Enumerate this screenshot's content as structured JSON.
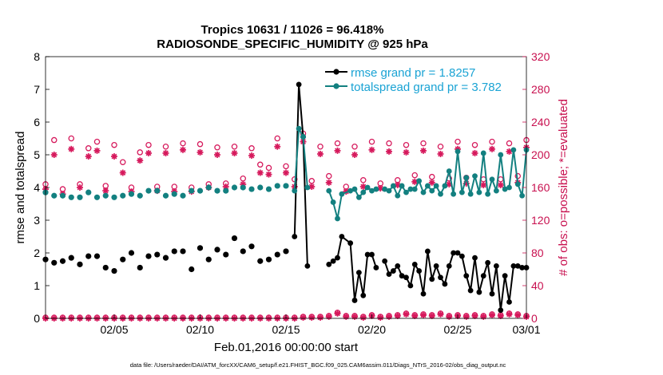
{
  "chart_data": {
    "type": "line",
    "title": "Tropics 10631 / 11026 = 96.418%",
    "subtitle": "RADIOSONDE_SPECIFIC_HUMIDITY @ 925 hPa",
    "xlabel": "Feb.01,2016 00:00:00 start",
    "ylabel": "rmse and totalspread",
    "ylabel_right": "# of obs: o=possible; *=evaluated",
    "footer": "data file: /Users/raeder/DAI/ATM_forcXX/CAM6_setup/f.e21.FHIST_BGC.f09_025.CAM6assim.011/Diags_NTrS_2016-02/obs_diag_output.nc",
    "xlim": [
      1,
      29
    ],
    "ylim": [
      0,
      8
    ],
    "ylim_right": [
      0,
      320
    ],
    "x_ticks": [
      {
        "value": 5,
        "label": "02/05"
      },
      {
        "value": 10,
        "label": "02/10"
      },
      {
        "value": 15,
        "label": "02/15"
      },
      {
        "value": 20,
        "label": "02/20"
      },
      {
        "value": 25,
        "label": "02/25"
      },
      {
        "value": 29,
        "label": "03/01"
      }
    ],
    "y_ticks": [
      0,
      1,
      2,
      3,
      4,
      5,
      6,
      7,
      8
    ],
    "y_ticks_right": [
      0,
      40,
      80,
      120,
      160,
      200,
      240,
      280,
      320
    ],
    "legend": {
      "location": "top-right",
      "entries": [
        "rmse grand pr = 1.8257",
        "totalspread grand pr = 3.782"
      ]
    },
    "colors": {
      "rmse": "#000000",
      "spread": "#138080",
      "obs": "#d6195c"
    },
    "series": [
      {
        "name": "rmse grand pr = 1.8257",
        "axis": "left",
        "segments": [
          {
            "x": [
              15.5,
              15.75,
              16.0,
              16.25
            ],
            "y": [
              2.5,
              7.15,
              5.55,
              1.6
            ]
          },
          {
            "x": [
              17.5,
              17.75,
              18.0,
              18.25,
              18.75,
              19.0,
              19.25,
              19.5,
              19.75,
              20.0,
              20.25
            ],
            "y": [
              1.65,
              1.75,
              1.85,
              2.5,
              2.3,
              0.55,
              1.4,
              0.7,
              1.95,
              1.95,
              1.55
            ]
          },
          {
            "x": [
              20.75,
              21.0,
              21.25,
              21.5,
              21.75,
              22.0,
              22.25,
              22.5,
              22.75,
              23.0,
              23.25,
              23.5,
              23.75,
              24.0,
              24.25,
              24.5,
              24.75,
              25.0,
              25.25,
              25.5,
              25.75,
              26.0,
              26.25,
              26.5,
              26.75,
              27.0,
              27.25,
              27.5,
              27.75,
              28.0,
              28.25,
              28.5,
              28.75,
              29.0
            ],
            "y": [
              1.75,
              1.35,
              1.45,
              1.6,
              1.3,
              1.25,
              1.0,
              1.65,
              1.45,
              0.75,
              2.05,
              1.2,
              1.6,
              1.25,
              1.05,
              1.6,
              2.0,
              2.0,
              1.9,
              1.3,
              0.85,
              1.85,
              0.8,
              1.3,
              1.7,
              0.75,
              1.6,
              0.25,
              1.3,
              0.5,
              1.6,
              1.6,
              1.55,
              1.55
            ]
          }
        ],
        "points": {
          "x": [
            1.0,
            1.5,
            2.0,
            2.5,
            3.0,
            3.5,
            4.0,
            4.5,
            5.0,
            5.5,
            6.0,
            6.5,
            7.0,
            7.5,
            8.0,
            8.5,
            9.0,
            9.5,
            10.0,
            10.5,
            11.0,
            11.5,
            12.0,
            12.5,
            13.0,
            13.5,
            14.0,
            14.5,
            15.0
          ],
          "y": [
            1.8,
            1.7,
            1.75,
            1.85,
            1.65,
            1.9,
            1.9,
            1.55,
            1.45,
            1.8,
            2.0,
            1.55,
            1.9,
            1.95,
            1.85,
            2.05,
            2.05,
            1.5,
            2.15,
            1.8,
            2.1,
            1.95,
            2.45,
            2.05,
            2.2,
            1.75,
            1.8,
            1.95,
            2.05
          ]
        }
      },
      {
        "name": "totalspread grand pr = 3.782",
        "axis": "left",
        "segments": [
          {
            "x": [
              15.5,
              15.75,
              16.0,
              16.25
            ],
            "y": [
              3.9,
              5.8,
              5.55,
              4.0
            ]
          },
          {
            "x": [
              17.5,
              17.75,
              18.0,
              18.25,
              18.75,
              19.0,
              19.25,
              19.5,
              19.75,
              20.0,
              20.25
            ],
            "y": [
              3.9,
              3.55,
              3.05,
              3.8,
              3.9,
              3.95,
              3.7,
              3.85,
              4.0,
              3.9,
              3.95
            ]
          },
          {
            "x": [
              20.75,
              21.0,
              21.25,
              21.5,
              21.75,
              22.0,
              22.25,
              22.5,
              22.75,
              23.0,
              23.25,
              23.5,
              23.75,
              24.0,
              24.25,
              24.5,
              24.75,
              25.0,
              25.25,
              25.5,
              25.75,
              26.0,
              26.25,
              26.5,
              26.75,
              27.0,
              27.25,
              27.5,
              27.75,
              28.0,
              28.25,
              28.5,
              28.75,
              29.0
            ],
            "y": [
              3.95,
              3.9,
              4.05,
              3.75,
              4.05,
              3.85,
              3.95,
              3.95,
              4.2,
              3.85,
              4.05,
              3.9,
              4.05,
              3.8,
              4.05,
              4.5,
              3.8,
              5.1,
              3.85,
              4.3,
              3.8,
              4.35,
              3.85,
              5.05,
              3.8,
              4.25,
              3.9,
              5.0,
              3.95,
              4.0,
              5.15,
              4.1,
              3.75,
              5.15
            ]
          }
        ],
        "points": {
          "x": [
            1.0,
            1.5,
            2.0,
            2.5,
            3.0,
            3.5,
            4.0,
            4.5,
            5.0,
            5.5,
            6.0,
            6.5,
            7.0,
            7.5,
            8.0,
            8.5,
            9.0,
            9.5,
            10.0,
            10.5,
            11.0,
            11.5,
            12.0,
            12.5,
            13.0,
            13.5,
            14.0,
            14.5,
            15.0
          ],
          "y": [
            3.85,
            3.75,
            3.75,
            3.7,
            3.7,
            3.85,
            3.7,
            3.75,
            3.7,
            3.75,
            3.8,
            3.75,
            3.9,
            3.9,
            3.75,
            3.8,
            3.75,
            3.9,
            3.9,
            4.0,
            3.9,
            3.9,
            4.0,
            4.0,
            3.95,
            4.0,
            3.95,
            4.05,
            4.05
          ]
        }
      },
      {
        "name": "possible",
        "axis": "right",
        "x": [
          1.0,
          1.5,
          2.0,
          2.5,
          3.0,
          3.5,
          4.0,
          4.5,
          5.0,
          5.5,
          6.0,
          6.5,
          7.0,
          7.5,
          8.0,
          8.5,
          9.0,
          9.5,
          10.0,
          10.5,
          11.0,
          11.5,
          12.0,
          12.5,
          13.0,
          13.5,
          14.0,
          14.5,
          15.0,
          15.5,
          16.0,
          16.5,
          17.0,
          17.5,
          18.0,
          18.5,
          19.0,
          19.5,
          20.0,
          20.5,
          21.0,
          21.5,
          22.0,
          22.5,
          23.0,
          23.5,
          24.0,
          24.5,
          25.0,
          25.5,
          26.0,
          26.5,
          27.0,
          27.5,
          28.0,
          28.5,
          29.0
        ],
        "y": [
          164,
          218,
          158,
          220,
          164,
          208,
          216,
          162,
          212,
          191,
          160,
          203,
          212,
          161,
          210,
          161,
          214,
          160,
          213,
          164,
          209,
          165,
          210,
          171,
          208,
          188,
          184,
          220,
          186,
          170,
          226,
          168,
          210,
          174,
          214,
          161,
          210,
          169,
          216,
          165,
          214,
          169,
          212,
          175,
          214,
          173,
          210,
          171,
          216,
          172,
          212,
          170,
          216,
          170,
          214,
          174,
          218
        ]
      },
      {
        "name": "evaluated",
        "axis": "right",
        "x": [
          1.0,
          1.5,
          2.0,
          2.5,
          3.0,
          3.5,
          4.0,
          4.5,
          5.0,
          5.5,
          6.0,
          6.5,
          7.0,
          7.5,
          8.0,
          8.5,
          9.0,
          9.5,
          10.0,
          10.5,
          11.0,
          11.5,
          12.0,
          12.5,
          13.0,
          13.5,
          14.0,
          14.5,
          15.0,
          15.5,
          16.0,
          16.5,
          17.0,
          17.5,
          18.0,
          18.5,
          19.0,
          19.5,
          20.0,
          20.5,
          21.0,
          21.5,
          22.0,
          22.5,
          23.0,
          23.5,
          24.0,
          24.5,
          25.0,
          25.5,
          26.0,
          26.5,
          27.0,
          27.5,
          28.0,
          28.5,
          29.0
        ],
        "y": [
          158,
          200,
          152,
          207,
          160,
          198,
          205,
          156,
          198,
          178,
          155,
          193,
          202,
          156,
          202,
          155,
          206,
          155,
          203,
          160,
          200,
          161,
          202,
          164,
          199,
          178,
          176,
          210,
          178,
          161,
          216,
          161,
          201,
          166,
          205,
          155,
          200,
          161,
          206,
          159,
          204,
          163,
          203,
          167,
          205,
          166,
          201,
          164,
          207,
          165,
          202,
          163,
          207,
          163,
          204,
          166,
          209
        ]
      },
      {
        "name": "possible-bottom",
        "axis": "right",
        "x": [
          1.0,
          1.5,
          2.0,
          2.5,
          3.0,
          3.5,
          4.0,
          4.5,
          5.0,
          5.5,
          6.0,
          6.5,
          7.0,
          7.5,
          8.0,
          8.5,
          9.0,
          9.5,
          10.0,
          10.5,
          11.0,
          11.5,
          12.0,
          12.5,
          13.0,
          13.5,
          14.0,
          14.5,
          15.0,
          15.5,
          16.0,
          16.5,
          17.0,
          17.5,
          18.0,
          18.5,
          19.0,
          19.5,
          20.0,
          20.5,
          21.0,
          21.5,
          22.0,
          22.5,
          23.0,
          23.5,
          24.0,
          24.5,
          25.0,
          25.5,
          26.0,
          26.5,
          27.0,
          27.5,
          28.0,
          28.5,
          29.0
        ],
        "y": [
          1,
          1,
          1,
          1,
          1,
          1,
          1,
          1,
          1,
          1,
          1,
          1,
          1,
          1,
          1,
          1,
          1,
          1,
          1,
          1,
          1,
          1,
          1,
          1,
          1,
          1,
          1,
          1,
          1,
          1,
          2,
          2,
          2,
          3,
          7,
          3,
          3,
          2,
          4,
          2,
          3,
          4,
          6,
          4,
          5,
          4,
          6,
          3,
          4,
          3,
          4,
          3,
          5,
          4,
          6,
          5,
          3
        ]
      },
      {
        "name": "evaluated-bottom",
        "axis": "right",
        "x": [
          1.0,
          1.5,
          2.0,
          2.5,
          3.0,
          3.5,
          4.0,
          4.5,
          5.0,
          5.5,
          6.0,
          6.5,
          7.0,
          7.5,
          8.0,
          8.5,
          9.0,
          9.5,
          10.0,
          10.5,
          11.0,
          11.5,
          12.0,
          12.5,
          13.0,
          13.5,
          14.0,
          14.5,
          15.0,
          15.5,
          16.0,
          16.5,
          17.0,
          17.5,
          18.0,
          18.5,
          19.0,
          19.5,
          20.0,
          20.5,
          21.0,
          21.5,
          22.0,
          22.5,
          23.0,
          23.5,
          24.0,
          24.5,
          25.0,
          25.5,
          26.0,
          26.5,
          27.0,
          27.5,
          28.0,
          28.5,
          29.0
        ],
        "y": [
          0,
          0,
          0,
          0,
          0,
          0,
          0,
          0,
          0,
          0,
          0,
          0,
          0,
          0,
          0,
          0,
          0,
          0,
          0,
          0,
          0,
          0,
          0,
          0,
          0,
          0,
          0,
          0,
          0,
          0,
          1,
          1,
          1,
          2,
          6,
          2,
          2,
          1,
          3,
          1,
          2,
          3,
          5,
          3,
          4,
          3,
          5,
          2,
          3,
          2,
          3,
          2,
          4,
          3,
          5,
          4,
          2
        ]
      }
    ]
  }
}
